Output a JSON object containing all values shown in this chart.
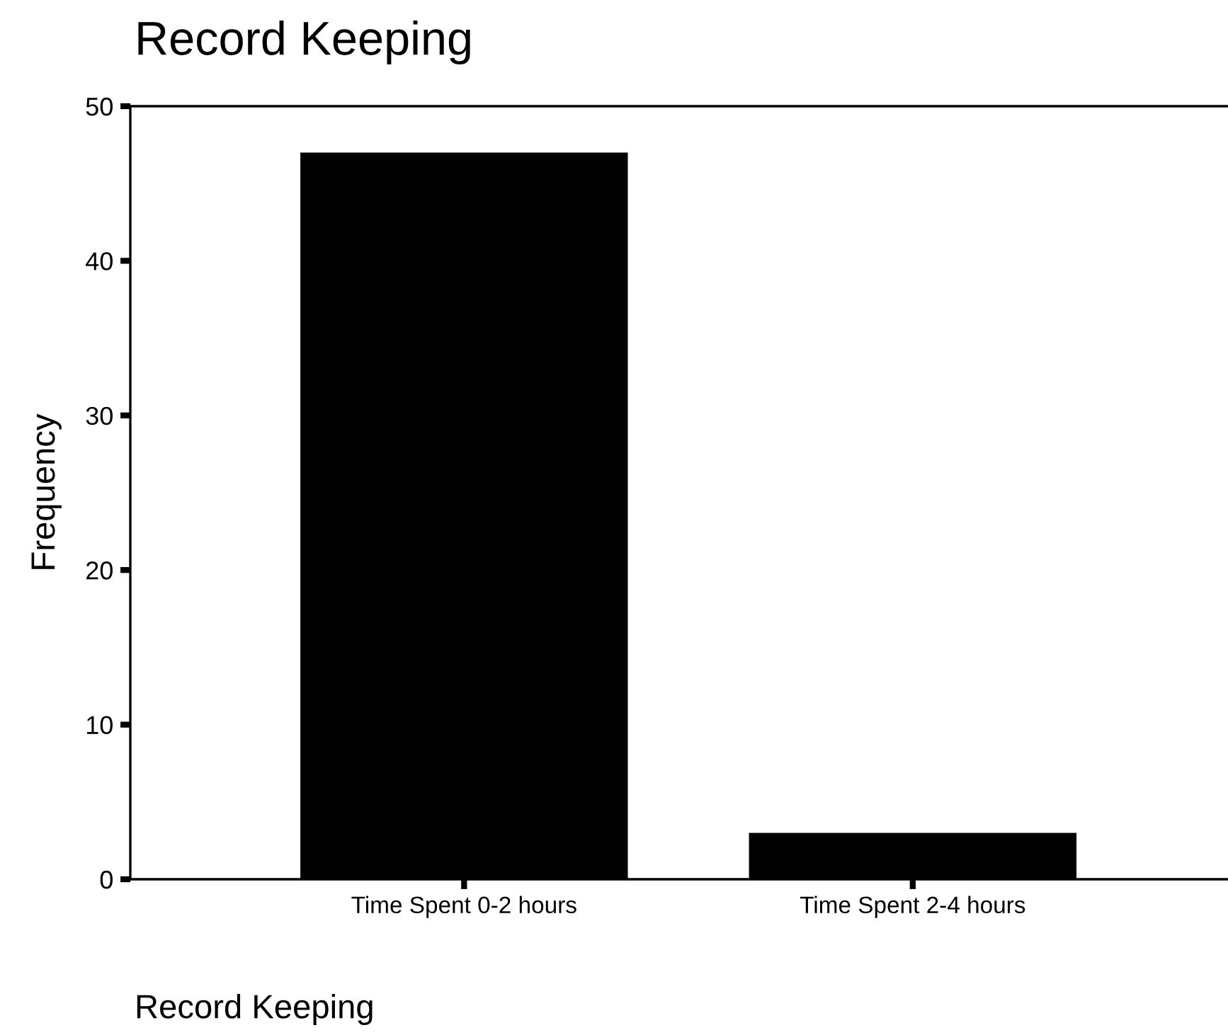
{
  "chart_data": {
    "type": "bar",
    "title": "Record Keeping",
    "xlabel": "Record Keeping",
    "ylabel": "Frequency",
    "categories": [
      "Time Spent 0-2 hours",
      "Time Spent 2-4 hours"
    ],
    "values": [
      47,
      3
    ],
    "color": "#000000",
    "ylim": [
      0,
      50
    ],
    "yticks": [
      0,
      10,
      20,
      30,
      40,
      50
    ],
    "grid": false,
    "legend": false
  }
}
